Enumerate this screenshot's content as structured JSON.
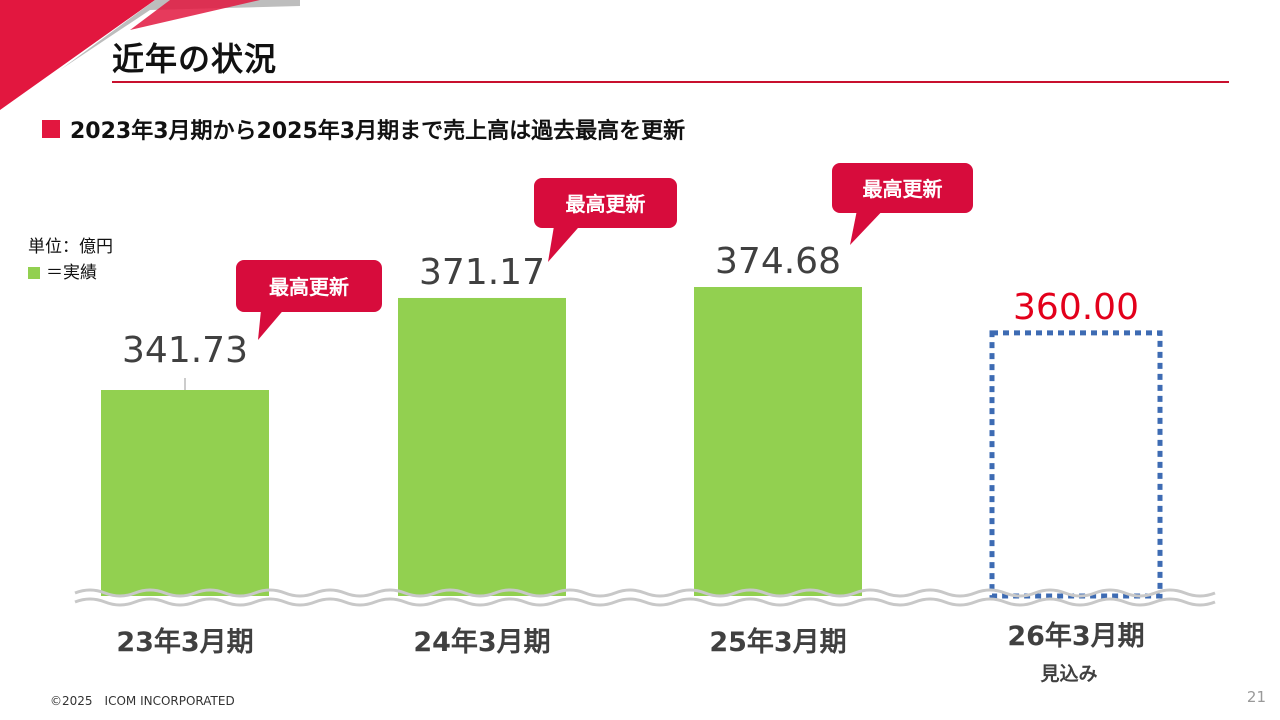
{
  "header": {
    "title": "近年の状況",
    "accent_color": "#c8102e"
  },
  "headline": "2023年3月期から2025年3月期まで売上高は過去最高を更新",
  "unit_label": "単位：億円",
  "legend_label": "＝実績",
  "chart_data": {
    "type": "bar",
    "categories": [
      "23年3月期",
      "24年3月期",
      "25年3月期",
      "26年3月期"
    ],
    "category_sublabels": [
      "",
      "",
      "",
      "見込み"
    ],
    "values": [
      341.73,
      371.17,
      374.68,
      360.0
    ],
    "value_labels": [
      "341.73",
      "371.17",
      "374.68",
      "360.00"
    ],
    "kind": [
      "actual",
      "actual",
      "actual",
      "forecast"
    ],
    "callout_text": "最高更新",
    "callouts": [
      true,
      true,
      true,
      false
    ],
    "axis_break": true,
    "colors": {
      "actual_bar": "#92d050",
      "forecast_outline": "#3d6bb3",
      "forecast_label": "#e3001b",
      "callout": "#d70c3c",
      "value_label": "#404040",
      "axis_break": "#c8c8c8"
    }
  },
  "footer": {
    "copyright": "©2025　ICOM INCORPORATED",
    "page_number": "21"
  }
}
